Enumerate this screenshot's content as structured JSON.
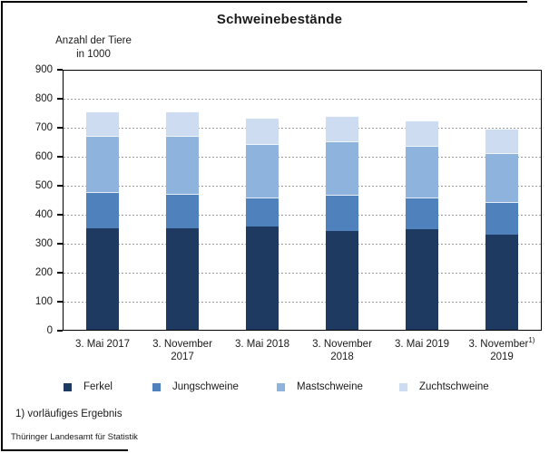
{
  "title": "Schweinebestände",
  "y_axis_title": {
    "line1": "Anzahl der Tiere",
    "line2": "in 1000"
  },
  "footnote": "1) vorläufiges Ergebnis",
  "source": "Thüringer Landesamt für Statistik",
  "colors": {
    "ferkel": "#1F3A60",
    "jungschweine": "#4F81BD",
    "mastschweine": "#8EB4DE",
    "zuchtschweine": "#CDDCF0",
    "gridline": "#9B9B9B",
    "axis": "#000000"
  },
  "chart_data": {
    "type": "bar",
    "stacked": true,
    "title": "Schweinebestände",
    "ylabel": "Anzahl der Tiere in 1000",
    "xlabel": "",
    "ylim": [
      0,
      900
    ],
    "ytick_step": 100,
    "grid": "horizontal-dashed",
    "legend_position": "bottom",
    "categories": [
      "3. Mai 2017",
      "3. November 2017",
      "3. Mai 2018",
      "3. November 2018",
      "3. Mai 2019",
      "3. November 2019"
    ],
    "x_labels": [
      {
        "line1": "3. Mai 2017",
        "line2": "",
        "sup": ""
      },
      {
        "line1": "3. November",
        "line2": "2017",
        "sup": ""
      },
      {
        "line1": "3. Mai 2018",
        "line2": "",
        "sup": ""
      },
      {
        "line1": "3. November",
        "line2": "2018",
        "sup": ""
      },
      {
        "line1": "3. Mai 2019",
        "line2": "",
        "sup": ""
      },
      {
        "line1": "3. November",
        "line2": "2019",
        "sup": "1)"
      }
    ],
    "series": [
      {
        "name": "Ferkel",
        "color": "#1F3A60",
        "values": [
          350,
          350,
          355,
          340,
          348,
          327
        ]
      },
      {
        "name": "Jungschweine",
        "color": "#4F81BD",
        "values": [
          125,
          120,
          100,
          125,
          107,
          113
        ]
      },
      {
        "name": "Mastschweine",
        "color": "#8EB4DE",
        "values": [
          195,
          200,
          185,
          185,
          180,
          170
        ]
      },
      {
        "name": "Zuchtschweine",
        "color": "#CDDCF0",
        "values": [
          82,
          82,
          90,
          89,
          88,
          85
        ]
      }
    ],
    "totals": [
      752,
      752,
      730,
      739,
      723,
      695
    ]
  }
}
